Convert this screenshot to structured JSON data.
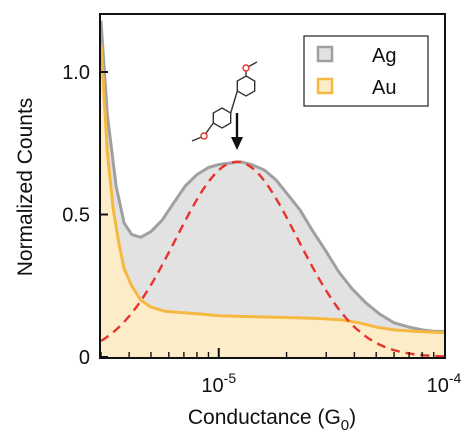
{
  "chart_data": {
    "type": "area",
    "xlabel_main": "Conductance (G",
    "xlabel_sub": "0",
    "xlabel_end": ")",
    "ylabel": "Normalized Counts",
    "x_scale": "log",
    "xlim": [
      3e-06,
      0.0001
    ],
    "ylim": [
      0,
      1.2
    ],
    "x_ticks": [
      {
        "value": 1e-05,
        "base": "10",
        "exp": "-5"
      },
      {
        "value": 0.0001,
        "base": "10",
        "exp": "-4"
      }
    ],
    "y_ticks": [
      {
        "value": 0,
        "label": "0"
      },
      {
        "value": 0.5,
        "label": "0.5"
      },
      {
        "value": 1.0,
        "label": "1.0"
      }
    ],
    "series": [
      {
        "name": "Ag",
        "line_color": "#a0a0a0",
        "fill_color": "#e2e2e2",
        "points": [
          [
            3e-06,
            1.18
          ],
          [
            3.2e-06,
            0.85
          ],
          [
            3.5e-06,
            0.6
          ],
          [
            3.8e-06,
            0.47
          ],
          [
            4.1e-06,
            0.43
          ],
          [
            4.5e-06,
            0.42
          ],
          [
            5e-06,
            0.44
          ],
          [
            5.6e-06,
            0.48
          ],
          [
            6.3e-06,
            0.54
          ],
          [
            7.1e-06,
            0.6
          ],
          [
            8e-06,
            0.64
          ],
          [
            9e-06,
            0.665
          ],
          [
            1e-05,
            0.675
          ],
          [
            1.1e-05,
            0.68
          ],
          [
            1.25e-05,
            0.685
          ],
          [
            1.4e-05,
            0.675
          ],
          [
            1.6e-05,
            0.655
          ],
          [
            1.8e-05,
            0.62
          ],
          [
            2e-05,
            0.575
          ],
          [
            2.3e-05,
            0.515
          ],
          [
            2.6e-05,
            0.445
          ],
          [
            3e-05,
            0.37
          ],
          [
            3.4e-05,
            0.3
          ],
          [
            3.9e-05,
            0.24
          ],
          [
            4.5e-05,
            0.19
          ],
          [
            5.2e-05,
            0.15
          ],
          [
            6e-05,
            0.12
          ],
          [
            7e-05,
            0.105
          ],
          [
            8e-05,
            0.095
          ],
          [
            9e-05,
            0.09
          ],
          [
            0.0001,
            0.09
          ]
        ]
      },
      {
        "name": "Au",
        "line_color": "#f5b942",
        "fill_color": "#fdecc8",
        "points": [
          [
            3e-06,
            1.1
          ],
          [
            3.2e-06,
            0.72
          ],
          [
            3.4e-06,
            0.52
          ],
          [
            3.6e-06,
            0.4
          ],
          [
            3.8e-06,
            0.31
          ],
          [
            4.1e-06,
            0.25
          ],
          [
            4.5e-06,
            0.2
          ],
          [
            5e-06,
            0.175
          ],
          [
            5.8e-06,
            0.16
          ],
          [
            7e-06,
            0.155
          ],
          [
            8.5e-06,
            0.15
          ],
          [
            1e-05,
            0.145
          ],
          [
            1.3e-05,
            0.142
          ],
          [
            1.7e-05,
            0.14
          ],
          [
            2.2e-05,
            0.138
          ],
          [
            2.8e-05,
            0.135
          ],
          [
            3.5e-05,
            0.13
          ],
          [
            4.2e-05,
            0.12
          ],
          [
            5e-05,
            0.105
          ],
          [
            6e-05,
            0.095
          ],
          [
            7.5e-05,
            0.09
          ],
          [
            0.0001,
            0.085
          ]
        ]
      },
      {
        "name": "fit",
        "style": "dashed",
        "line_color": "#e8322c",
        "gaussian": {
          "amplitude": 0.685,
          "center_log10": -4.92,
          "sigma_log10": 0.27
        }
      }
    ],
    "legend": {
      "position": "top-right",
      "items": [
        {
          "label": "Ag",
          "series": "Ag"
        },
        {
          "label": "Au",
          "series": "Au"
        }
      ]
    },
    "annotation": {
      "type": "molecule-and-arrow",
      "points_to_x": 1.25e-05,
      "points_to_y": 0.685
    }
  }
}
